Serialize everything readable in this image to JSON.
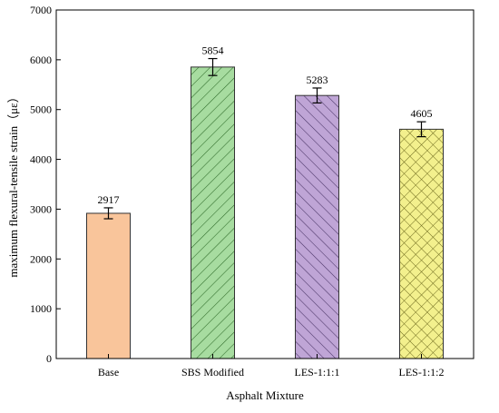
{
  "chart_data": {
    "type": "bar",
    "categories": [
      "Base",
      "SBS Modified",
      "LES-1:1:1",
      "LES-1:1:2"
    ],
    "values": [
      2917,
      5854,
      5283,
      4605
    ],
    "error": [
      110,
      170,
      150,
      150
    ],
    "data_labels": [
      "2917",
      "5854",
      "5283",
      "4605"
    ],
    "xlabel": "Asphalt Mixture",
    "ylabel": "maximum flexural-tensile strain（με）",
    "ylim": [
      0,
      7000
    ],
    "yticks": [
      0,
      1000,
      2000,
      3000,
      4000,
      5000,
      6000,
      7000
    ],
    "ytick_labels": [
      "0",
      "1000",
      "2000",
      "3000",
      "4000",
      "5000",
      "6000",
      "7000"
    ],
    "grid": false,
    "legend": "none",
    "bar_styles": [
      {
        "fill": "#F9C59B",
        "hatch": "none"
      },
      {
        "fill": "#A7DCA0",
        "hatch": "diagonal-forward",
        "hatch_color": "#2f6b2a"
      },
      {
        "fill": "#BFA5D6",
        "hatch": "diagonal-back",
        "hatch_color": "#4a3466"
      },
      {
        "fill": "#F3F08D",
        "hatch": "cross",
        "hatch_color": "#6e6a1e"
      }
    ],
    "colors": {
      "axis": "#000000",
      "bar_outline": "#333333"
    }
  }
}
